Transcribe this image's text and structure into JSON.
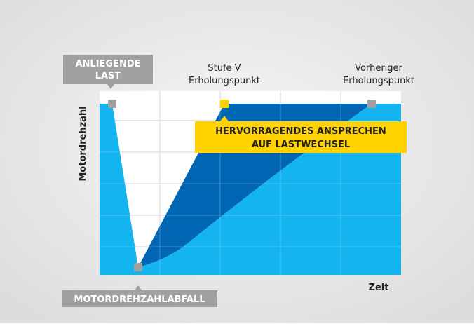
{
  "labels": {
    "load": [
      "ANLIEGENDE",
      "LAST"
    ],
    "stage_v": [
      "Stufe V",
      "Erholungspunkt"
    ],
    "previous": [
      "Vorheriger",
      "Erholungspunkt"
    ],
    "response": [
      "HERVORRAGENDES ANSPRECHEN",
      "AUF LASTWECHSEL"
    ],
    "drop": "MOTORDREHZAHLABFALL",
    "x_axis": "Zeit",
    "y_axis": "Motordrehzahl"
  }
}
